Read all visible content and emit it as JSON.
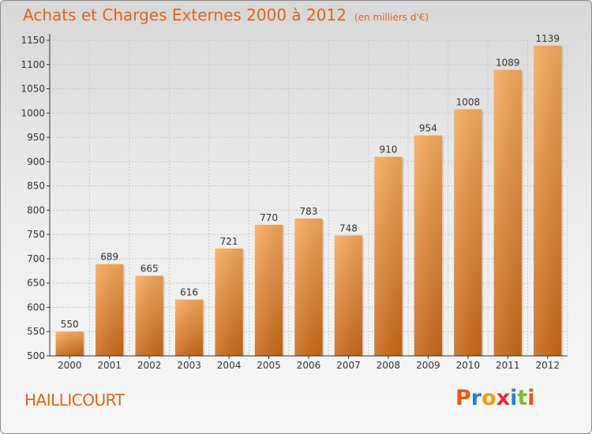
{
  "header": {
    "title": "Achats et Charges Externes 2000 à 2012",
    "unit": "(en milliers d'€)"
  },
  "footer": {
    "commune": "HAILLICOURT",
    "brand": "Proxiti"
  },
  "brand_colors": [
    "#e85a10",
    "#2b7fd0",
    "#e8a000",
    "#e03030",
    "#2b7fd0",
    "#7bbf2a",
    "#e85a10"
  ],
  "colors": {
    "title": "#e0641a",
    "bar_light": "#f6a85a",
    "bar_dark": "#c56a1a",
    "grid": "#c8c8c8",
    "axis": "#333333"
  },
  "chart_data": {
    "type": "bar",
    "title": "Achats et Charges Externes 2000 à 2012",
    "subtitle": "(en milliers d'€)",
    "categories": [
      "2000",
      "2001",
      "2002",
      "2003",
      "2004",
      "2005",
      "2006",
      "2007",
      "2008",
      "2009",
      "2010",
      "2011",
      "2012"
    ],
    "values": [
      550,
      689,
      665,
      616,
      721,
      770,
      783,
      748,
      910,
      954,
      1008,
      1089,
      1139
    ],
    "ylim": [
      500,
      1150
    ],
    "yticks": [
      500,
      550,
      600,
      650,
      700,
      750,
      800,
      850,
      900,
      950,
      1000,
      1050,
      1100,
      1150
    ],
    "grid": true,
    "xlabel": "",
    "ylabel": ""
  }
}
